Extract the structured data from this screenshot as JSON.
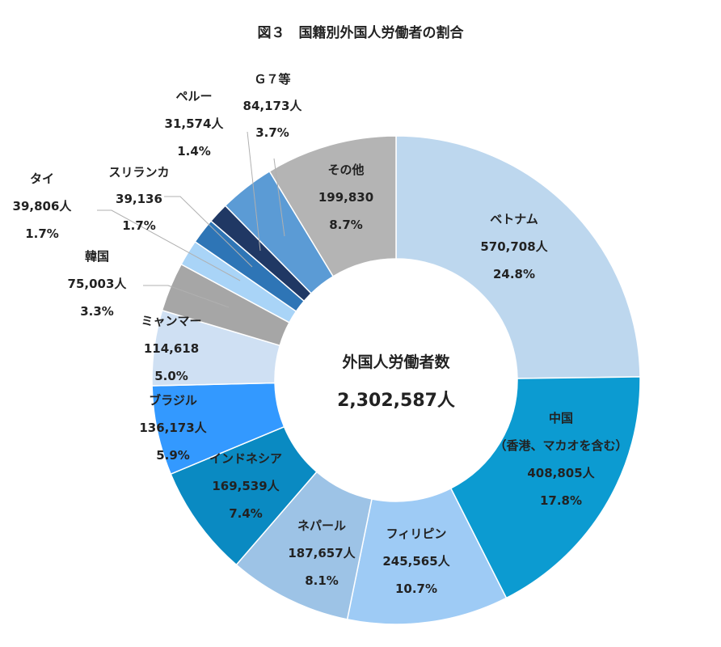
{
  "chart_data": {
    "type": "pie",
    "title": "図３　国籍別外国人労働者の割合",
    "center_label": "外国人労働者数",
    "center_value": "2,302,587人",
    "total": 2302587,
    "slices": [
      {
        "name": "ベトナム",
        "count": 570708,
        "count_label": "570,708人",
        "percent_label": "24.8%",
        "color": "#bdd7ee"
      },
      {
        "name": "中国",
        "name2": "（香港、マカオを含む）",
        "count": 408805,
        "count_label": "408,805人",
        "percent_label": "17.8%",
        "color": "#0c9bd1"
      },
      {
        "name": "フィリピン",
        "count": 245565,
        "count_label": "245,565人",
        "percent_label": "10.7%",
        "color": "#9ecbf5"
      },
      {
        "name": "ネパール",
        "count": 187657,
        "count_label": "187,657人",
        "percent_label": "8.1%",
        "color": "#9dc3e6"
      },
      {
        "name": "インドネシア",
        "count": 169539,
        "count_label": "169,539人",
        "percent_label": "7.4%",
        "color": "#0a8ac2"
      },
      {
        "name": "ブラジル",
        "count": 136173,
        "count_label": "136,173人",
        "percent_label": "5.9%",
        "color": "#3399ff"
      },
      {
        "name": "ミャンマー",
        "count": 114618,
        "count_label": "114,618",
        "percent_label": "5.0%",
        "color": "#cfe0f3"
      },
      {
        "name": "韓国",
        "count": 75003,
        "count_label": "75,003人",
        "percent_label": "3.3%",
        "color": "#a6a6a6"
      },
      {
        "name": "タイ",
        "count": 39806,
        "count_label": "39,806人",
        "percent_label": "1.7%",
        "color": "#a9d4f7"
      },
      {
        "name": "スリランカ",
        "count": 39136,
        "count_label": "39,136",
        "percent_label": "1.7%",
        "color": "#2e75b6"
      },
      {
        "name": "ペルー",
        "count": 31574,
        "count_label": "31,574人",
        "percent_label": "1.4%",
        "color": "#203864"
      },
      {
        "name": "Ｇ７等",
        "count": 84173,
        "count_label": "84,173人",
        "percent_label": "3.7%",
        "color": "#5b9bd5"
      },
      {
        "name": "その他",
        "count": 199830,
        "count_label": "199,830",
        "percent_label": "8.7%",
        "color": "#b4b4b4"
      }
    ]
  }
}
